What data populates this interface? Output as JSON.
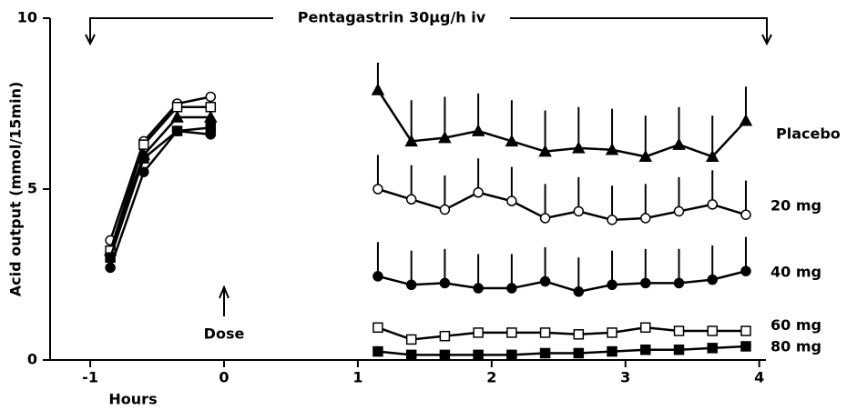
{
  "chart_data": {
    "type": "line",
    "xlabel": "Hours",
    "ylabel": "Acid output (mmol/15min)",
    "annotations": [
      "Pentagastrin 30µg/h iv",
      "Dose"
    ],
    "x": [
      -0.85,
      -0.6,
      -0.35,
      -0.1,
      1.15,
      1.4,
      1.65,
      1.9,
      2.15,
      2.4,
      2.65,
      2.9,
      3.15,
      3.4,
      3.65,
      3.9
    ],
    "xlim": [
      -1.3,
      4.05
    ],
    "xticks": [
      -1,
      0,
      1,
      2,
      3,
      4
    ],
    "ylim": [
      0,
      10
    ],
    "yticks": [
      0,
      5,
      10
    ],
    "series": [
      {
        "name": "Placebo",
        "color": "#000000",
        "marker": "triangle",
        "values": [
          3.2,
          6.0,
          7.1,
          7.1,
          7.9,
          6.4,
          6.5,
          6.7,
          6.4,
          6.1,
          6.2,
          6.15,
          5.95,
          6.3,
          5.95,
          7.0
        ],
        "errors": [
          null,
          null,
          null,
          null,
          0.8,
          1.2,
          1.2,
          1.1,
          1.2,
          1.2,
          1.2,
          1.2,
          1.2,
          1.1,
          1.2,
          1.0
        ]
      },
      {
        "name": "20 mg",
        "color": "#000000",
        "marker": "circle-open",
        "values": [
          3.5,
          6.4,
          7.5,
          7.7,
          5.0,
          4.7,
          4.4,
          4.9,
          4.65,
          4.15,
          4.35,
          4.1,
          4.15,
          4.35,
          4.55,
          4.25
        ],
        "errors": [
          null,
          null,
          null,
          null,
          1.0,
          1.0,
          1.0,
          1.0,
          1.0,
          1.0,
          1.0,
          1.0,
          1.0,
          1.0,
          1.0,
          1.0
        ]
      },
      {
        "name": "40 mg",
        "color": "#000000",
        "marker": "circle",
        "values": [
          2.7,
          5.5,
          6.7,
          6.6,
          2.45,
          2.2,
          2.25,
          2.1,
          2.1,
          2.3,
          2.0,
          2.2,
          2.25,
          2.25,
          2.35,
          2.6
        ],
        "errors": [
          null,
          null,
          null,
          null,
          1.0,
          1.0,
          1.0,
          1.0,
          1.0,
          1.0,
          1.0,
          1.0,
          1.0,
          1.0,
          1.0,
          1.0
        ]
      },
      {
        "name": "60 mg",
        "color": "#000000",
        "marker": "square-open",
        "values": [
          3.2,
          6.3,
          7.4,
          7.4,
          0.95,
          0.6,
          0.7,
          0.8,
          0.8,
          0.8,
          0.75,
          0.8,
          0.95,
          0.85,
          0.85,
          0.85
        ]
      },
      {
        "name": "80 mg",
        "color": "#000000",
        "marker": "square",
        "values": [
          3.0,
          5.9,
          6.7,
          6.8,
          0.25,
          0.15,
          0.15,
          0.15,
          0.15,
          0.2,
          0.2,
          0.25,
          0.3,
          0.3,
          0.35,
          0.4
        ]
      }
    ]
  }
}
